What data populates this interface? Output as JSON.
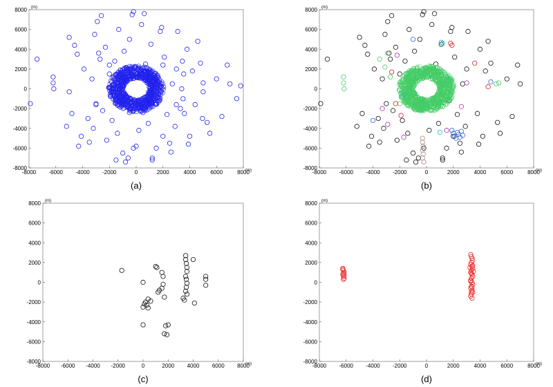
{
  "chart_data": [
    {
      "type": "scatter",
      "caption": "(a)",
      "unit_label": "(m)",
      "xlim": [
        -8000,
        8000
      ],
      "ylim": [
        -8000,
        8000
      ],
      "xticks": [
        -8000,
        -6000,
        -4000,
        -2000,
        0,
        2000,
        4000,
        6000,
        8000
      ],
      "yticks": [
        -8000,
        -6000,
        -4000,
        -2000,
        0,
        2000,
        4000,
        6000,
        8000
      ],
      "grid": false,
      "series": [
        {
          "color": "#2222ee",
          "marker": "open-circle",
          "x": [
            -6200,
            -6200,
            -6150,
            -4800,
            -4400,
            -4100,
            -3900,
            -3600,
            -3300,
            -3200,
            -3100,
            -3000,
            -2900,
            -2700,
            -2500,
            -2300,
            -2200,
            -2000,
            -1800,
            -1600,
            -1400,
            -1300,
            -1200,
            -1000,
            -900,
            -800,
            -600,
            -500,
            -400,
            -300,
            -200,
            0,
            200,
            400,
            700,
            900,
            1100,
            1200,
            1400,
            1500,
            1700,
            1800,
            2000,
            2100,
            2300,
            2500,
            2700,
            2900,
            3000,
            3300,
            3400,
            3450,
            3500,
            3550,
            3600,
            3800,
            4000,
            4200,
            4400,
            4800,
            4950,
            5000,
            5500,
            6000,
            6400,
            7000,
            7500,
            -7900,
            -7400,
            -5200,
            -5000,
            -4600,
            -4300,
            -3500,
            -2800,
            -2600,
            -1500,
            -800,
            -200,
            600,
            1200,
            1900,
            2600,
            3100,
            3900,
            4600,
            5300,
            6800,
            7800,
            -1000,
            1000,
            -3000,
            3000,
            -2000,
            2000,
            -500,
            500,
            -5000,
            5000
          ],
          "y": [
            1200,
            600,
            0,
            -2500,
            3500,
            -4800,
            2000,
            -3000,
            1000,
            -4000,
            5500,
            -1500,
            6800,
            3000,
            -2200,
            4200,
            -5200,
            1500,
            -3200,
            2800,
            -4500,
            6000,
            -800,
            -6500,
            3800,
            1800,
            -7000,
            5000,
            -2000,
            7500,
            -6000,
            -5800,
            -4200,
            6500,
            2500,
            -3500,
            4500,
            -7200,
            1000,
            -6000,
            -1200,
            5800,
            -4800,
            3200,
            -2600,
            -5500,
            500,
            -3800,
            2000,
            -2000,
            0,
            2800,
            -1000,
            1500,
            -2500,
            4000,
            -4800,
            1800,
            -1600,
            2600,
            -3000,
            600,
            -4500,
            1000,
            -2800,
            500,
            -1000,
            -1500,
            3000,
            -3800,
            5200,
            4400,
            -5800,
            -5400,
            3600,
            7400,
            -7200,
            -7400,
            7800,
            7600,
            -7000,
            6200,
            -6400,
            5800,
            -5600,
            4800,
            -3400,
            2400,
            300,
            1600,
            1600,
            -1600,
            -1600,
            2400,
            2400,
            -2400,
            -2400,
            -300,
            -300
          ]
        },
        {
          "color": "#2222ee",
          "marker": "open-circle",
          "ring": true,
          "cx": 0,
          "cy": 0,
          "rx": 1500,
          "ry": 1700,
          "thickness": 700
        }
      ]
    },
    {
      "type": "scatter",
      "caption": "(b)",
      "unit_label": "(m)",
      "xlim": [
        -8000,
        8000
      ],
      "ylim": [
        -8000,
        8000
      ],
      "xticks": [
        -8000,
        -6000,
        -4000,
        -2000,
        0,
        2000,
        4000,
        6000,
        8000
      ],
      "yticks": [
        -8000,
        -6000,
        -4000,
        -2000,
        0,
        2000,
        4000,
        6000,
        8000
      ],
      "grid": false,
      "series": [
        {
          "color": "#111111",
          "marker": "open-circle",
          "x": [
            -4800,
            -4400,
            -4100,
            -3900,
            -3600,
            -3300,
            -3200,
            -3100,
            -3000,
            -2900,
            -2700,
            -2500,
            -2300,
            -2200,
            -2000,
            -1800,
            -1600,
            -1400,
            -1300,
            -1200,
            -1000,
            -900,
            -800,
            -600,
            -500,
            -400,
            -300,
            -200,
            200,
            400,
            700,
            900,
            1100,
            1200,
            1500,
            1700,
            1800,
            2000,
            2100,
            2300,
            2500,
            2700,
            2900,
            3000,
            3800,
            4000,
            4200,
            4400,
            4800,
            5500,
            6000,
            6400,
            7000,
            -7900,
            -7400,
            -5200,
            -5000,
            -4600,
            -4300,
            -3500,
            -2800,
            -2600,
            -1500,
            -800,
            -200,
            600,
            1200,
            1900,
            2600,
            3100,
            3900,
            4600,
            5300,
            6800
          ],
          "y": [
            -2500,
            3500,
            -4800,
            2000,
            -3000,
            1000,
            -4000,
            5500,
            -1500,
            6800,
            3000,
            -2200,
            4200,
            -5200,
            1500,
            -3200,
            2800,
            -4500,
            6000,
            -800,
            -6500,
            3800,
            1800,
            -7000,
            5000,
            -2000,
            7500,
            -6000,
            -4200,
            6500,
            2500,
            -3500,
            4500,
            -7200,
            -6000,
            -1200,
            5800,
            -4800,
            3200,
            -2600,
            -5500,
            500,
            -3800,
            2000,
            -2500,
            4000,
            -4800,
            1800,
            2600,
            -4500,
            1000,
            -2800,
            500,
            -1500,
            3000,
            -3800,
            5200,
            4400,
            -5800,
            -5400,
            3600,
            7400,
            -7200,
            -7400,
            7800,
            7600,
            -7000,
            6200,
            -6400,
            5800,
            -5600,
            4800,
            -3400,
            2400
          ]
        },
        {
          "color": "#44cc66",
          "marker": "open-circle",
          "ring": true,
          "cx": 0,
          "cy": 0,
          "rx": 1500,
          "ry": 1700,
          "thickness": 700
        },
        {
          "color": "#44cc66",
          "marker": "open-circle",
          "x": [
            -6200,
            -6200,
            -6150,
            -3500,
            -2900,
            -2700,
            5200,
            5400,
            -2000,
            -3100
          ],
          "y": [
            1200,
            600,
            0,
            3000,
            3600,
            1200,
            500,
            600,
            -1500,
            2200
          ]
        },
        {
          "color": "#cc2222",
          "marker": "open-circle",
          "x": [
            -2300,
            -1900,
            1800,
            1900,
            3600,
            4600,
            -2600
          ],
          "y": [
            -1500,
            -2700,
            4600,
            4400,
            2600,
            200,
            1700
          ]
        },
        {
          "color": "#3366cc",
          "marker": "open-circle",
          "x": [
            1900,
            2000,
            2100,
            2200,
            2300,
            2400,
            2500,
            2600,
            2700,
            -4000,
            -1000,
            4800
          ],
          "y": [
            -4200,
            -4500,
            -4800,
            -5000,
            -4400,
            -4600,
            -4900,
            -4300,
            -4700,
            -3200,
            5000,
            700
          ]
        },
        {
          "color": "#aa8888",
          "marker": "open-circle",
          "x": [
            -300,
            -300,
            -250,
            -300,
            -250,
            -300,
            -200
          ],
          "y": [
            -5000,
            -5400,
            -5800,
            -6200,
            -6600,
            -7000,
            -7400
          ]
        },
        {
          "color": "#aa33aa",
          "marker": "open-circle",
          "x": [
            -3300,
            -2900,
            -1700,
            2600,
            3000,
            -2200,
            1500
          ],
          "y": [
            -2000,
            -3600,
            -4900,
            -1800,
            600,
            3400,
            -4200
          ]
        },
        {
          "color": "#22bbcc",
          "marker": "open-circle",
          "x": [
            1100,
            1000,
            1200,
            -1700
          ],
          "y": [
            4700,
            -4400,
            4600,
            -600
          ]
        }
      ]
    },
    {
      "type": "scatter",
      "caption": "(c)",
      "unit_label": "(m)",
      "xlim": [
        -8000,
        8000
      ],
      "ylim": [
        -8000,
        8000
      ],
      "xticks": [
        -8000,
        -6000,
        -4000,
        -2000,
        0,
        2000,
        4000,
        6000,
        8000
      ],
      "yticks": [
        -8000,
        -6000,
        -4000,
        -2000,
        0,
        2000,
        4000,
        6000,
        8000
      ],
      "grid": false,
      "series": [
        {
          "color": "#111111",
          "marker": "open-circle",
          "x": [
            -1700,
            0,
            0,
            100,
            200,
            300,
            400,
            600,
            1000,
            1100,
            1200,
            1300,
            1500,
            1600,
            1700,
            1800,
            2000,
            3200,
            3300,
            3400,
            3400,
            3450,
            3500,
            3500,
            3400,
            3450,
            3500,
            3450,
            3400,
            3500,
            4000,
            4100,
            5000,
            5000,
            5000,
            1700,
            1900,
            1600,
            1500,
            0,
            400
          ],
          "y": [
            1200,
            0,
            -2500,
            -2200,
            -2000,
            -2300,
            -1700,
            -1900,
            1600,
            1500,
            -1000,
            -800,
            1000,
            600,
            -1500,
            -4400,
            -4300,
            -1600,
            -1800,
            2700,
            2300,
            1900,
            1500,
            1100,
            600,
            300,
            -100,
            -500,
            -900,
            -1200,
            2300,
            -2100,
            600,
            300,
            -300,
            -5200,
            -5300,
            -200,
            -600,
            -4300,
            -2600
          ]
        }
      ]
    },
    {
      "type": "scatter",
      "caption": "(d)",
      "unit_label": "(m)",
      "xlim": [
        -8000,
        8000
      ],
      "ylim": [
        -8000,
        8000
      ],
      "xticks": [
        -8000,
        -6000,
        -4000,
        -2000,
        0,
        2000,
        4000,
        6000,
        8000
      ],
      "yticks": [
        -8000,
        -6000,
        -4000,
        -2000,
        0,
        2000,
        4000,
        6000,
        8000
      ],
      "grid": false,
      "series": [
        {
          "color": "#ee2222",
          "marker": "open-circle",
          "x": [
            -6250,
            -6200,
            -6150,
            -6250,
            -6200,
            -6150,
            -6200,
            -6250,
            -6150,
            -6200,
            3300,
            3350,
            3400,
            3450,
            3350,
            3300,
            3400,
            3450,
            3350,
            3300,
            3400,
            3450,
            3350,
            3300,
            3400,
            3450,
            3350,
            3300,
            3400,
            3450,
            3350,
            3300,
            3400,
            3450,
            3350,
            3300,
            3400,
            3500,
            3250,
            3350
          ],
          "y": [
            1400,
            1200,
            1000,
            800,
            600,
            400,
            300,
            1300,
            700,
            900,
            2800,
            2600,
            2400,
            2200,
            2000,
            1800,
            1600,
            1400,
            1200,
            1000,
            800,
            600,
            400,
            200,
            0,
            -200,
            -400,
            -600,
            -800,
            -1000,
            -1200,
            -1400,
            -1600,
            1700,
            900,
            100,
            -500,
            1100,
            1500,
            -1000
          ]
        }
      ]
    }
  ]
}
